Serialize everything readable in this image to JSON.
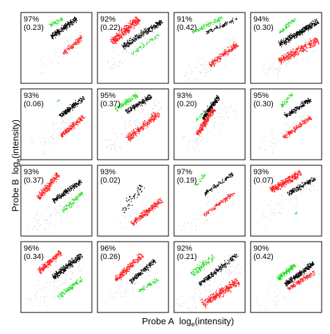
{
  "chart_data": {
    "type": "scatter",
    "xlabel": "Probe A",
    "xlabel_unit": "log",
    "xlabel_unit_sub": "e",
    "xlabel_unit_tail": "(intensity)",
    "ylabel": "Probe B",
    "ylabel_unit": "log",
    "ylabel_unit_sub": "e",
    "ylabel_unit_tail": "(intensity)",
    "grid": false,
    "layout": {
      "rows": 4,
      "cols": 4
    },
    "colors": {
      "black": "#000000",
      "red": "#ff1a1a",
      "green": "#22dd22",
      "grey": "#b8c4d4"
    },
    "panels": [
      {
        "pct": "97%",
        "cor": "(0.23)",
        "clusters": [
          {
            "color": "black",
            "x0": 0.42,
            "y0": 0.66,
            "x1": 0.78,
            "y1": 0.92,
            "w": 0.055,
            "n": 240
          },
          {
            "color": "green",
            "x0": 0.4,
            "y0": 0.82,
            "x1": 0.58,
            "y1": 0.92,
            "w": 0.04,
            "n": 50
          },
          {
            "color": "red",
            "x0": 0.58,
            "y0": 0.42,
            "x1": 0.86,
            "y1": 0.66,
            "w": 0.05,
            "n": 110
          },
          {
            "color": "grey",
            "x0": 0.25,
            "y0": 0.15,
            "x1": 0.85,
            "y1": 0.75,
            "w": 0.18,
            "n": 30
          }
        ]
      },
      {
        "pct": "92%",
        "cor": "(0.22)",
        "clusters": [
          {
            "color": "red",
            "x0": 0.2,
            "y0": 0.58,
            "x1": 0.58,
            "y1": 0.92,
            "w": 0.08,
            "n": 360
          },
          {
            "color": "black",
            "x0": 0.35,
            "y0": 0.52,
            "x1": 0.9,
            "y1": 0.88,
            "w": 0.06,
            "n": 280
          },
          {
            "color": "green",
            "x0": 0.48,
            "y0": 0.42,
            "x1": 0.86,
            "y1": 0.7,
            "w": 0.04,
            "n": 60
          },
          {
            "color": "grey",
            "x0": 0.15,
            "y0": 0.22,
            "x1": 0.85,
            "y1": 0.72,
            "w": 0.2,
            "n": 70
          }
        ]
      },
      {
        "pct": "91%",
        "cor": "(0.42)",
        "clusters": [
          {
            "color": "green",
            "x0": 0.25,
            "y0": 0.72,
            "x1": 0.68,
            "y1": 0.94,
            "w": 0.05,
            "n": 100
          },
          {
            "color": "black",
            "x0": 0.45,
            "y0": 0.72,
            "x1": 0.88,
            "y1": 0.92,
            "w": 0.04,
            "n": 90
          },
          {
            "color": "red",
            "x0": 0.5,
            "y0": 0.26,
            "x1": 0.88,
            "y1": 0.56,
            "w": 0.06,
            "n": 220
          },
          {
            "color": "grey",
            "x0": 0.15,
            "y0": 0.08,
            "x1": 0.9,
            "y1": 0.6,
            "w": 0.2,
            "n": 70
          }
        ]
      },
      {
        "pct": "94%",
        "cor": "(0.30)",
        "clusters": [
          {
            "color": "green",
            "x0": 0.4,
            "y0": 0.72,
            "x1": 0.62,
            "y1": 0.92,
            "w": 0.04,
            "n": 60
          },
          {
            "color": "black",
            "x0": 0.4,
            "y0": 0.55,
            "x1": 0.94,
            "y1": 0.88,
            "w": 0.06,
            "n": 340
          },
          {
            "color": "red",
            "x0": 0.4,
            "y0": 0.32,
            "x1": 0.94,
            "y1": 0.62,
            "w": 0.08,
            "n": 340
          },
          {
            "color": "grey",
            "x0": 0.2,
            "y0": 0.12,
            "x1": 0.88,
            "y1": 0.6,
            "w": 0.2,
            "n": 80
          }
        ]
      },
      {
        "pct": "93%",
        "cor": "(0.06)",
        "clusters": [
          {
            "color": "black",
            "x0": 0.55,
            "y0": 0.62,
            "x1": 0.88,
            "y1": 0.88,
            "w": 0.05,
            "n": 200
          },
          {
            "color": "red",
            "x0": 0.56,
            "y0": 0.34,
            "x1": 0.88,
            "y1": 0.62,
            "w": 0.05,
            "n": 200
          },
          {
            "color": "green",
            "x0": 0.5,
            "y0": 0.82,
            "x1": 0.54,
            "y1": 0.86,
            "w": 0.04,
            "n": 6
          },
          {
            "color": "grey",
            "x0": 0.25,
            "y0": 0.12,
            "x1": 0.75,
            "y1": 0.7,
            "w": 0.2,
            "n": 60
          }
        ]
      },
      {
        "pct": "95%",
        "cor": "(0.37)",
        "clusters": [
          {
            "color": "green",
            "x0": 0.25,
            "y0": 0.72,
            "x1": 0.55,
            "y1": 0.92,
            "w": 0.05,
            "n": 120
          },
          {
            "color": "black",
            "x0": 0.4,
            "y0": 0.68,
            "x1": 0.75,
            "y1": 0.9,
            "w": 0.05,
            "n": 180
          },
          {
            "color": "red",
            "x0": 0.42,
            "y0": 0.3,
            "x1": 0.86,
            "y1": 0.66,
            "w": 0.07,
            "n": 280
          },
          {
            "color": "grey",
            "x0": 0.12,
            "y0": 0.15,
            "x1": 0.88,
            "y1": 0.82,
            "w": 0.22,
            "n": 90
          }
        ]
      },
      {
        "pct": "93%",
        "cor": "(0.20)",
        "clusters": [
          {
            "color": "black",
            "x0": 0.4,
            "y0": 0.58,
            "x1": 0.62,
            "y1": 0.9,
            "w": 0.05,
            "n": 220
          },
          {
            "color": "red",
            "x0": 0.32,
            "y0": 0.36,
            "x1": 0.55,
            "y1": 0.72,
            "w": 0.05,
            "n": 260
          },
          {
            "color": "green",
            "x0": 0.3,
            "y0": 0.55,
            "x1": 0.42,
            "y1": 0.7,
            "w": 0.03,
            "n": 20
          },
          {
            "color": "grey",
            "x0": 0.15,
            "y0": 0.15,
            "x1": 0.85,
            "y1": 0.8,
            "w": 0.22,
            "n": 80
          }
        ]
      },
      {
        "pct": "95%",
        "cor": "(0.30)",
        "clusters": [
          {
            "color": "green",
            "x0": 0.42,
            "y0": 0.76,
            "x1": 0.58,
            "y1": 0.94,
            "w": 0.04,
            "n": 50
          },
          {
            "color": "black",
            "x0": 0.48,
            "y0": 0.62,
            "x1": 0.84,
            "y1": 0.86,
            "w": 0.05,
            "n": 170
          },
          {
            "color": "red",
            "x0": 0.46,
            "y0": 0.32,
            "x1": 0.84,
            "y1": 0.6,
            "w": 0.05,
            "n": 170
          },
          {
            "color": "grey",
            "x0": 0.15,
            "y0": 0.1,
            "x1": 0.8,
            "y1": 0.65,
            "w": 0.2,
            "n": 50
          }
        ]
      },
      {
        "pct": "93%",
        "cor": "(0.37)",
        "clusters": [
          {
            "color": "red",
            "x0": 0.24,
            "y0": 0.54,
            "x1": 0.52,
            "y1": 0.88,
            "w": 0.06,
            "n": 220
          },
          {
            "color": "black",
            "x0": 0.45,
            "y0": 0.5,
            "x1": 0.84,
            "y1": 0.78,
            "w": 0.05,
            "n": 220
          },
          {
            "color": "green",
            "x0": 0.58,
            "y0": 0.36,
            "x1": 0.86,
            "y1": 0.62,
            "w": 0.05,
            "n": 100
          },
          {
            "color": "grey",
            "x0": 0.1,
            "y0": 0.05,
            "x1": 0.9,
            "y1": 0.62,
            "w": 0.22,
            "n": 90
          }
        ]
      },
      {
        "pct": "93%",
        "cor": "(0.02)",
        "clusters": [
          {
            "color": "black",
            "x0": 0.35,
            "y0": 0.35,
            "x1": 0.62,
            "y1": 0.72,
            "w": 0.08,
            "n": 60
          },
          {
            "color": "red",
            "x0": 0.48,
            "y0": 0.18,
            "x1": 0.9,
            "y1": 0.52,
            "w": 0.06,
            "n": 260
          },
          {
            "color": "grey",
            "x0": 0.3,
            "y0": 0.12,
            "x1": 0.7,
            "y1": 0.48,
            "w": 0.18,
            "n": 25
          }
        ]
      },
      {
        "pct": "97%",
        "cor": "(0.19)",
        "clusters": [
          {
            "color": "green",
            "x0": 0.3,
            "y0": 0.72,
            "x1": 0.42,
            "y1": 0.88,
            "w": 0.04,
            "n": 30
          },
          {
            "color": "black",
            "x0": 0.42,
            "y0": 0.6,
            "x1": 0.82,
            "y1": 0.88,
            "w": 0.04,
            "n": 110
          },
          {
            "color": "red",
            "x0": 0.42,
            "y0": 0.3,
            "x1": 0.84,
            "y1": 0.62,
            "w": 0.04,
            "n": 140
          },
          {
            "color": "grey",
            "x0": 0.1,
            "y0": 0.05,
            "x1": 0.8,
            "y1": 0.6,
            "w": 0.2,
            "n": 50
          }
        ]
      },
      {
        "pct": "93%",
        "cor": "(0.07)",
        "clusters": [
          {
            "color": "red",
            "x0": 0.28,
            "y0": 0.65,
            "x1": 0.7,
            "y1": 0.9,
            "w": 0.07,
            "n": 320
          },
          {
            "color": "black",
            "x0": 0.52,
            "y0": 0.6,
            "x1": 0.9,
            "y1": 0.82,
            "w": 0.05,
            "n": 150
          },
          {
            "color": "green",
            "x0": 0.6,
            "y0": 0.32,
            "x1": 0.68,
            "y1": 0.36,
            "w": 0.03,
            "n": 6
          },
          {
            "color": "grey",
            "x0": 0.1,
            "y0": 0.2,
            "x1": 0.9,
            "y1": 0.75,
            "w": 0.2,
            "n": 60
          }
        ]
      },
      {
        "pct": "96%",
        "cor": "(0.34)",
        "clusters": [
          {
            "color": "red",
            "x0": 0.25,
            "y0": 0.58,
            "x1": 0.55,
            "y1": 0.86,
            "w": 0.06,
            "n": 200
          },
          {
            "color": "black",
            "x0": 0.45,
            "y0": 0.5,
            "x1": 0.85,
            "y1": 0.82,
            "w": 0.06,
            "n": 280
          },
          {
            "color": "green",
            "x0": 0.52,
            "y0": 0.22,
            "x1": 0.85,
            "y1": 0.48,
            "w": 0.05,
            "n": 120
          },
          {
            "color": "grey",
            "x0": 0.1,
            "y0": 0.1,
            "x1": 0.85,
            "y1": 0.7,
            "w": 0.22,
            "n": 90
          }
        ]
      },
      {
        "pct": "96%",
        "cor": "(0.26)",
        "clusters": [
          {
            "color": "red",
            "x0": 0.25,
            "y0": 0.46,
            "x1": 0.62,
            "y1": 0.82,
            "w": 0.06,
            "n": 240
          },
          {
            "color": "black",
            "x0": 0.46,
            "y0": 0.44,
            "x1": 0.8,
            "y1": 0.74,
            "w": 0.05,
            "n": 180
          },
          {
            "color": "green",
            "x0": 0.58,
            "y0": 0.3,
            "x1": 0.85,
            "y1": 0.48,
            "w": 0.04,
            "n": 70
          },
          {
            "color": "grey",
            "x0": 0.2,
            "y0": 0.2,
            "x1": 0.85,
            "y1": 0.7,
            "w": 0.2,
            "n": 60
          }
        ]
      },
      {
        "pct": "92%",
        "cor": "(0.21)",
        "clusters": [
          {
            "color": "green",
            "x0": 0.25,
            "y0": 0.54,
            "x1": 0.55,
            "y1": 0.8,
            "w": 0.07,
            "n": 120
          },
          {
            "color": "black",
            "x0": 0.35,
            "y0": 0.4,
            "x1": 0.88,
            "y1": 0.82,
            "w": 0.05,
            "n": 220
          },
          {
            "color": "red",
            "x0": 0.4,
            "y0": 0.12,
            "x1": 0.9,
            "y1": 0.45,
            "w": 0.08,
            "n": 340
          },
          {
            "color": "grey",
            "x0": 0.1,
            "y0": 0.05,
            "x1": 0.9,
            "y1": 0.7,
            "w": 0.22,
            "n": 100
          }
        ]
      },
      {
        "pct": "90%",
        "cor": "(0.42)",
        "clusters": [
          {
            "color": "green",
            "x0": 0.38,
            "y0": 0.48,
            "x1": 0.62,
            "y1": 0.68,
            "w": 0.05,
            "n": 160
          },
          {
            "color": "black",
            "x0": 0.48,
            "y0": 0.4,
            "x1": 0.88,
            "y1": 0.7,
            "w": 0.05,
            "n": 300
          },
          {
            "color": "red",
            "x0": 0.52,
            "y0": 0.34,
            "x1": 0.9,
            "y1": 0.58,
            "w": 0.05,
            "n": 150
          },
          {
            "color": "grey",
            "x0": 0.1,
            "y0": 0.05,
            "x1": 0.9,
            "y1": 0.65,
            "w": 0.22,
            "n": 70
          }
        ]
      }
    ]
  }
}
